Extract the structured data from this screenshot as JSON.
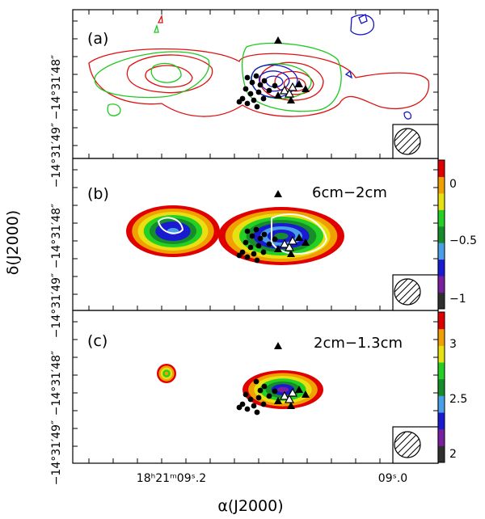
{
  "chart_data": [
    {
      "panel": "a",
      "type": "contour",
      "label": "(a)",
      "contour_colors": [
        "#e01010",
        "#1ec81e",
        "#1414c8"
      ],
      "y_ticks": [
        "−14°31′48″",
        "−14°31′49″"
      ]
    },
    {
      "panel": "b",
      "type": "heatmap",
      "label": "(b)",
      "band": "6cm−2cm",
      "colorbar": {
        "ticks": [
          "0",
          "−0.5",
          "−1"
        ],
        "range": [
          -1.1,
          0.2
        ]
      },
      "y_ticks": [
        "−14°31′48″",
        "−14°31′49″"
      ]
    },
    {
      "panel": "c",
      "type": "heatmap",
      "label": "(c)",
      "band": "2cm−1.3cm",
      "colorbar": {
        "ticks": [
          "3",
          "2.5",
          "2"
        ],
        "range": [
          1.9,
          3.3
        ]
      },
      "y_ticks": [
        "−14°31′48″",
        "−14°31′49″"
      ]
    }
  ],
  "x_ticks": [
    "18ʰ21ᵐ09ˢ.2",
    "09ˢ.0"
  ],
  "xlabel": "α(J2000)",
  "ylabel": "δ(J2000)",
  "colorscale": [
    "#303030",
    "#7a1fa0",
    "#1a1ad0",
    "#4aa0e8",
    "#178c2a",
    "#23d023",
    "#e8e010",
    "#f0a000",
    "#e00000"
  ]
}
